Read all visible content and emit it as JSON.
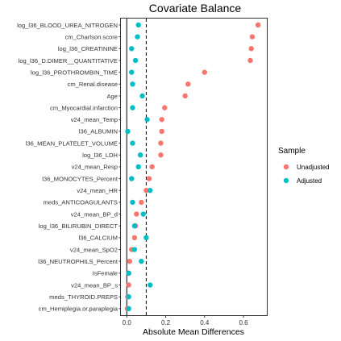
{
  "chart_data": {
    "type": "scatter",
    "title": "Covariate Balance",
    "xlabel": "Absolute Mean Differences",
    "ylabel": "",
    "xlim": [
      -0.03,
      0.72
    ],
    "xticks": [
      0.0,
      0.2,
      0.4,
      0.6
    ],
    "xtick_labels": [
      "0.0",
      "0.2",
      "0.4",
      "0.6"
    ],
    "reference_lines": [
      {
        "x": 0.0,
        "style": "solid"
      },
      {
        "x": 0.1,
        "style": "dashed"
      }
    ],
    "grid": false,
    "legend_position": "right",
    "legend_title": "Sample",
    "categories": [
      "log_l36_BLOOD_UREA_NITROGEN",
      "cm_Charlson.score",
      "log_l36_CREATININE",
      "log_l36_D.DIMER__QUANTITATIVE",
      "log_l36_PROTHROMBIN_TIME",
      "cm_Renal.disease",
      "Age",
      "cm_Myocardial.infarction",
      "v24_mean_Temp",
      "l36_ALBUMIN",
      "l36_MEAN_PLATELET_VOLUME",
      "log_l36_LDH",
      "v24_mean_Resp",
      "l36_MONOCYTES_Percent",
      "v24_mean_HR",
      "meds_ANTICOAGULANTS",
      "v24_mean_BP_d",
      "log_l36_BILIRUBIN_DIRECT",
      "l36_CALCIUM",
      "v24_mean_SpO2",
      "l36_NEUTROPHILS_Percent",
      "IsFemale",
      "v24_mean_BP_s",
      "meds_THYROID.PREPS",
      "cm_Hemiplegia.or.paraplegia"
    ],
    "series": [
      {
        "name": "Unadjusted",
        "color": "#F8766D",
        "values": [
          0.675,
          0.645,
          0.64,
          0.635,
          0.4,
          0.315,
          0.3,
          0.195,
          0.18,
          0.18,
          0.175,
          0.175,
          0.13,
          0.115,
          0.1,
          0.075,
          0.05,
          0.045,
          0.04,
          0.025,
          0.015,
          0.01,
          0.01,
          0.005,
          0.003
        ]
      },
      {
        "name": "Adjusted",
        "color": "#00BFC4",
        "values": [
          0.06,
          0.055,
          0.025,
          0.045,
          0.025,
          0.03,
          0.08,
          0.03,
          0.105,
          0.005,
          0.03,
          0.07,
          0.06,
          0.025,
          0.12,
          0.03,
          0.085,
          0.04,
          0.1,
          0.04,
          0.075,
          0.01,
          0.12,
          0.01,
          0.01
        ]
      }
    ]
  }
}
